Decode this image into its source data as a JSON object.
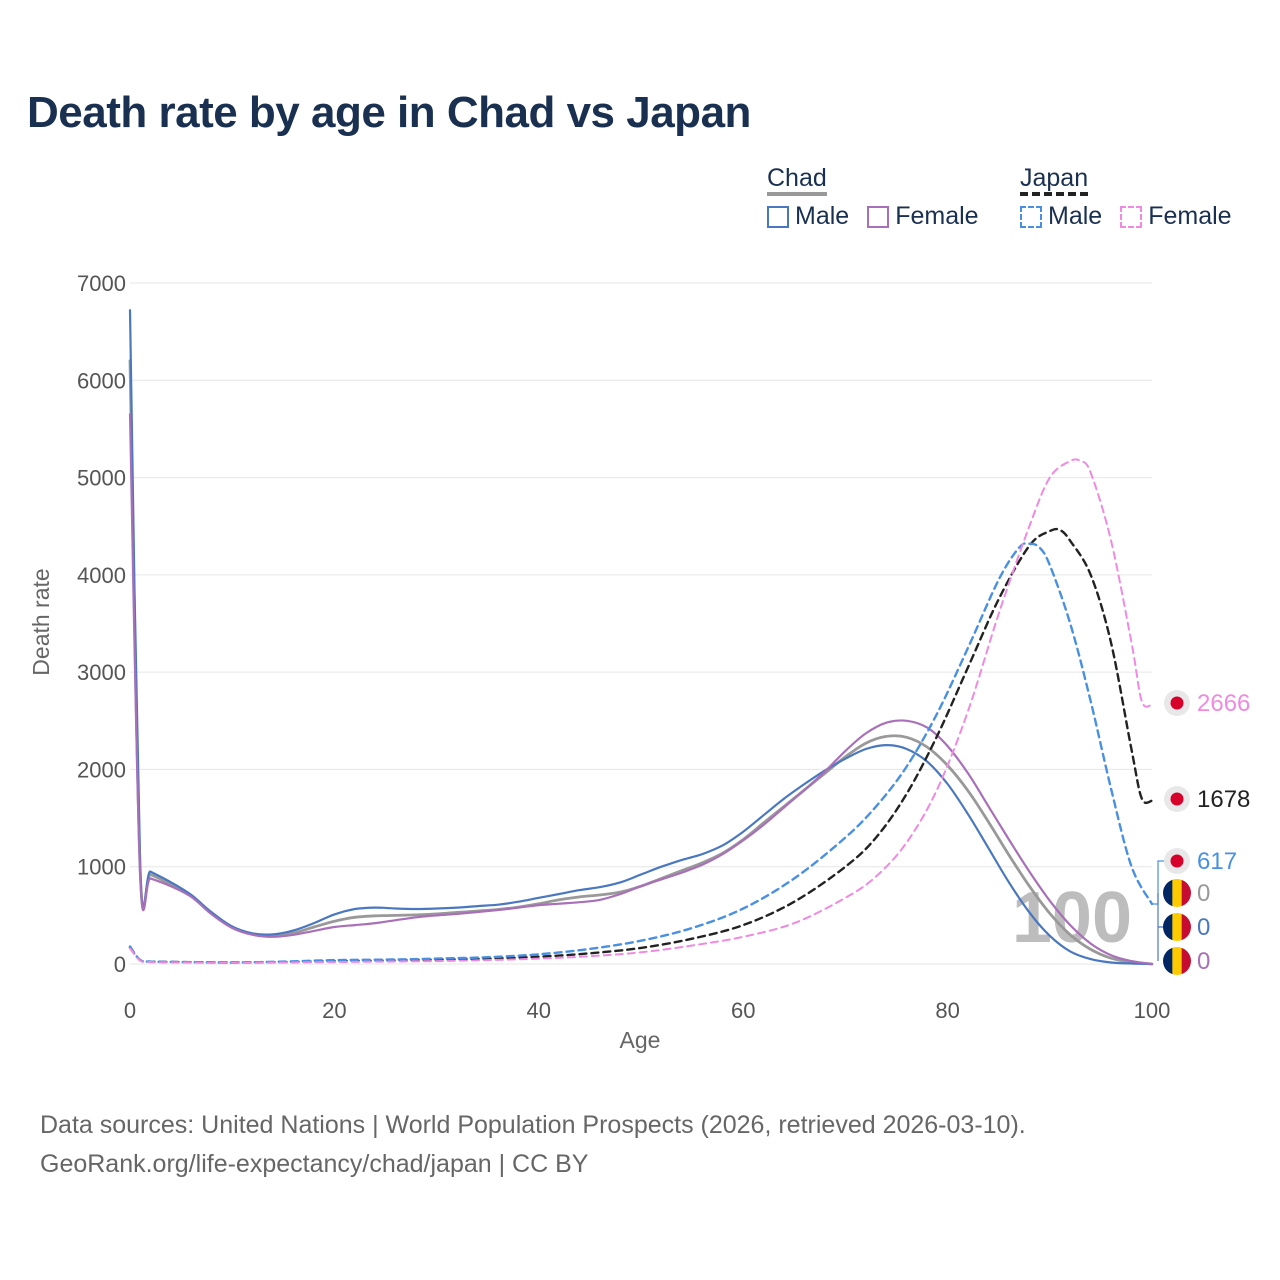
{
  "title": "Death rate by age in Chad vs Japan",
  "legend": {
    "chad": {
      "label": "Chad",
      "male": "Male",
      "female": "Female"
    },
    "japan": {
      "label": "Japan",
      "male": "Male",
      "female": "Female"
    }
  },
  "footer": {
    "line1": "Data sources: United Nations | World Population Prospects (2026, retrieved 2026-03-10).",
    "line2": "GeoRank.org/life-expectancy/chad/japan | CC BY"
  },
  "chart_data": {
    "type": "line",
    "xlabel": "Age",
    "ylabel": "Death rate",
    "xlim": [
      0,
      100
    ],
    "ylim": [
      0,
      7000
    ],
    "xticks": [
      0,
      20,
      40,
      60,
      80,
      100
    ],
    "yticks": [
      0,
      1000,
      2000,
      3000,
      4000,
      5000,
      6000,
      7000
    ],
    "current_age_label": "100",
    "series": [
      {
        "name": "Chad Total",
        "color": "#999999",
        "dash": false,
        "width": 2.8,
        "x": [
          0,
          1,
          2,
          4,
          6,
          8,
          10,
          12,
          14,
          16,
          18,
          20,
          22,
          24,
          26,
          28,
          30,
          32,
          34,
          36,
          38,
          40,
          42,
          44,
          46,
          48,
          50,
          52,
          54,
          56,
          58,
          60,
          62,
          64,
          66,
          68,
          70,
          72,
          74,
          76,
          78,
          80,
          82,
          84,
          86,
          88,
          90,
          92,
          94,
          96,
          98,
          100
        ],
        "y": [
          6200,
          960,
          920,
          820,
          700,
          520,
          380,
          310,
          295,
          320,
          380,
          440,
          480,
          495,
          500,
          505,
          515,
          530,
          545,
          560,
          585,
          620,
          660,
          690,
          710,
          740,
          800,
          880,
          960,
          1040,
          1140,
          1280,
          1450,
          1620,
          1790,
          1960,
          2130,
          2270,
          2340,
          2330,
          2230,
          2040,
          1780,
          1460,
          1120,
          800,
          520,
          300,
          150,
          60,
          20,
          0
        ]
      },
      {
        "name": "Chad Male",
        "color": "#4a78c0",
        "dash": false,
        "width": 2.2,
        "x": [
          0,
          1,
          2,
          4,
          6,
          8,
          10,
          12,
          14,
          16,
          18,
          20,
          22,
          24,
          26,
          28,
          30,
          32,
          34,
          36,
          38,
          40,
          42,
          44,
          46,
          48,
          50,
          52,
          54,
          56,
          58,
          60,
          62,
          64,
          66,
          68,
          70,
          72,
          74,
          76,
          78,
          80,
          82,
          84,
          86,
          88,
          90,
          92,
          94,
          96,
          98,
          100
        ],
        "y": [
          6720,
          1000,
          950,
          840,
          710,
          530,
          385,
          315,
          305,
          345,
          420,
          510,
          565,
          580,
          570,
          565,
          570,
          580,
          595,
          610,
          640,
          680,
          720,
          760,
          790,
          840,
          920,
          1000,
          1070,
          1130,
          1220,
          1360,
          1530,
          1700,
          1850,
          1990,
          2110,
          2210,
          2250,
          2210,
          2080,
          1850,
          1540,
          1190,
          840,
          530,
          290,
          130,
          50,
          15,
          5,
          0
        ]
      },
      {
        "name": "Chad Female",
        "color": "#a870b8",
        "dash": false,
        "width": 2.2,
        "x": [
          0,
          1,
          2,
          4,
          6,
          8,
          10,
          12,
          14,
          16,
          18,
          20,
          22,
          24,
          26,
          28,
          30,
          32,
          34,
          36,
          38,
          40,
          42,
          44,
          46,
          48,
          50,
          52,
          54,
          56,
          58,
          60,
          62,
          64,
          66,
          68,
          70,
          72,
          74,
          76,
          78,
          80,
          82,
          84,
          86,
          88,
          90,
          92,
          94,
          96,
          98,
          100
        ],
        "y": [
          5650,
          910,
          880,
          800,
          690,
          510,
          370,
          300,
          280,
          300,
          340,
          380,
          400,
          420,
          450,
          480,
          500,
          515,
          535,
          555,
          580,
          605,
          620,
          635,
          660,
          720,
          800,
          870,
          940,
          1020,
          1130,
          1270,
          1430,
          1610,
          1790,
          1980,
          2190,
          2370,
          2480,
          2500,
          2430,
          2240,
          1960,
          1620,
          1280,
          950,
          650,
          400,
          210,
          90,
          30,
          0
        ]
      },
      {
        "name": "Japan Total",
        "color": "#222222",
        "dash": true,
        "width": 2.4,
        "x": [
          0,
          1,
          2,
          5,
          10,
          15,
          20,
          25,
          30,
          35,
          40,
          45,
          50,
          55,
          60,
          65,
          70,
          73,
          76,
          79,
          82,
          85,
          88,
          90,
          91,
          92,
          94,
          96,
          98,
          99,
          100
        ],
        "y": [
          170,
          40,
          25,
          20,
          15,
          20,
          30,
          35,
          45,
          55,
          75,
          110,
          165,
          260,
          400,
          640,
          1000,
          1300,
          1750,
          2350,
          3050,
          3750,
          4300,
          4450,
          4460,
          4350,
          4000,
          3300,
          2200,
          1700,
          1678
        ]
      },
      {
        "name": "Japan Male",
        "color": "#4a90e2",
        "dash": true,
        "width": 2.4,
        "x": [
          0,
          1,
          2,
          5,
          10,
          15,
          20,
          25,
          30,
          35,
          40,
          45,
          50,
          55,
          60,
          65,
          70,
          73,
          76,
          79,
          82,
          85,
          87,
          88,
          89,
          90,
          92,
          94,
          96,
          98,
          100
        ],
        "y": [
          180,
          40,
          25,
          20,
          15,
          25,
          40,
          45,
          55,
          70,
          100,
          155,
          240,
          370,
          570,
          880,
          1300,
          1620,
          2030,
          2580,
          3250,
          3950,
          4280,
          4320,
          4280,
          4100,
          3500,
          2700,
          1800,
          1000,
          617
        ]
      },
      {
        "name": "Japan Female",
        "color": "#f08ae0",
        "dash": true,
        "width": 2.0,
        "x": [
          0,
          1,
          2,
          5,
          10,
          15,
          20,
          25,
          30,
          35,
          40,
          45,
          50,
          55,
          60,
          65,
          70,
          73,
          76,
          79,
          82,
          85,
          88,
          90,
          92,
          93,
          94,
          96,
          98,
          99,
          100
        ],
        "y": [
          160,
          35,
          20,
          15,
          12,
          15,
          20,
          25,
          30,
          40,
          55,
          80,
          120,
          190,
          280,
          420,
          680,
          900,
          1250,
          1800,
          2600,
          3600,
          4500,
          5000,
          5170,
          5170,
          5050,
          4350,
          3300,
          2700,
          2666
        ]
      }
    ],
    "end_labels": [
      {
        "name": "Japan Female",
        "value": "2666",
        "color": "#f08ae0",
        "flag": "japan"
      },
      {
        "name": "Japan Total",
        "value": "1678",
        "color": "#222222",
        "flag": "japan"
      },
      {
        "name": "Japan Male",
        "value": "617",
        "color": "#4a90e2",
        "flag": "japan"
      },
      {
        "name": "Chad Total",
        "value": "0",
        "color": "#999999",
        "flag": "chad"
      },
      {
        "name": "Chad Male",
        "value": "0",
        "color": "#4a78c0",
        "flag": "chad"
      },
      {
        "name": "Chad Female",
        "value": "0",
        "color": "#a870b8",
        "flag": "chad"
      }
    ],
    "flag_colors": {
      "japan": [
        "#ffffff",
        "#d6002a"
      ],
      "chad": [
        "#002664",
        "#fecb00",
        "#c60c30"
      ]
    }
  }
}
